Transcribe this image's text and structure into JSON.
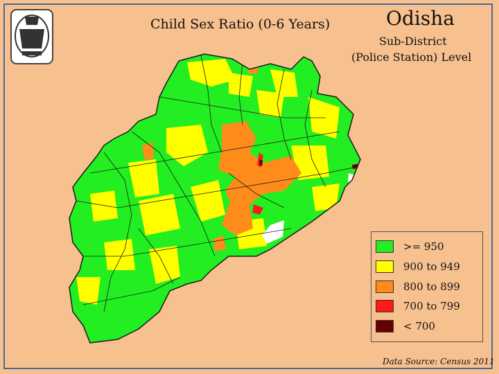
{
  "titles": {
    "indicator": "Child Sex Ratio (0-6 Years)",
    "state": "Odisha",
    "level_line1": "Sub-District",
    "level_line2": "(Police Station)  Level"
  },
  "legend": [
    {
      "label": ">= 950",
      "color": "#22ee22"
    },
    {
      "label": "900 to 949",
      "color": "#ffff00"
    },
    {
      "label": "800 to 899",
      "color": "#ff8c1a"
    },
    {
      "label": "700 to 799",
      "color": "#ff1a1a"
    },
    {
      "label": "< 700",
      "color": "#660000"
    }
  ],
  "source": "Data Source: Census 2011",
  "map": {
    "region": "Odisha",
    "boundary_color": "#1a1a1a",
    "no_data_color": "#ffffff"
  },
  "icons": {
    "emblem": "odisha-state-emblem-icon"
  }
}
